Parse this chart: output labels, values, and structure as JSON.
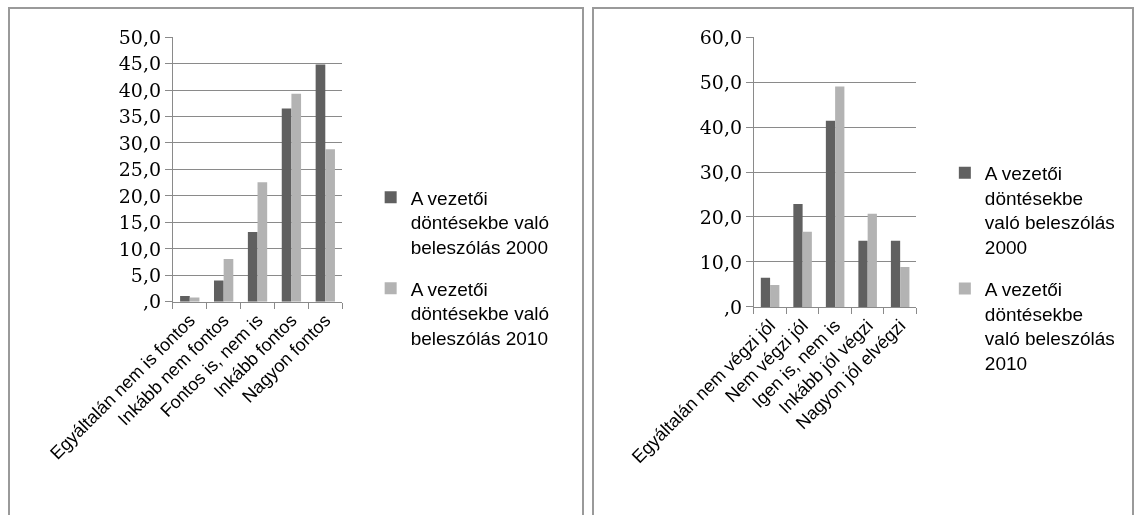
{
  "chart_data": [
    {
      "type": "bar",
      "categories": [
        "Egyáltalán nem is fontos",
        "Inkább nem fontos",
        "Fontos is, nem is",
        "Inkább fontos",
        "Nagyon fontos"
      ],
      "series": [
        {
          "name": "A vezetői döntésekbe való beleszólás 2000",
          "color": "#606060",
          "values": [
            1.1,
            4.0,
            13.2,
            36.5,
            44.8
          ]
        },
        {
          "name": "A vezetői döntésekbe való beleszólás 2010",
          "color": "#b3b3b3",
          "values": [
            0.8,
            8.1,
            22.6,
            39.3,
            28.8
          ]
        }
      ],
      "ylim": [
        0,
        50
      ],
      "yticks": [
        {
          "value": 0,
          "label": ",0"
        },
        {
          "value": 5,
          "label": "5,0"
        },
        {
          "value": 10,
          "label": "10,0"
        },
        {
          "value": 15,
          "label": "15,0"
        },
        {
          "value": 20,
          "label": "20,0"
        },
        {
          "value": 25,
          "label": "25,0"
        },
        {
          "value": 30,
          "label": "30,0"
        },
        {
          "value": 35,
          "label": "35,0"
        },
        {
          "value": 40,
          "label": "40,0"
        },
        {
          "value": 45,
          "label": "45,0"
        },
        {
          "value": 50,
          "label": "50,0"
        }
      ],
      "grid": "y",
      "legend": "right"
    },
    {
      "type": "bar",
      "categories": [
        "Egyáltalán nem végzi jól",
        "Nem végzi jól",
        "Igen is, nem is",
        "Inkább jól végzi",
        "Nagyon jól elvégzi"
      ],
      "series": [
        {
          "name": "A vezetői döntésekbe való beleszólás 2000",
          "color": "#606060",
          "values": [
            6.5,
            22.9,
            41.4,
            14.7,
            14.7
          ]
        },
        {
          "name": "A vezetői döntésekbe való beleszólás 2010",
          "color": "#b3b3b3",
          "values": [
            4.9,
            16.7,
            49.0,
            20.7,
            8.9
          ]
        }
      ],
      "ylim": [
        0,
        60
      ],
      "yticks": [
        {
          "value": 0,
          "label": ",0"
        },
        {
          "value": 10,
          "label": "10,0"
        },
        {
          "value": 20,
          "label": "20,0"
        },
        {
          "value": 30,
          "label": "30,0"
        },
        {
          "value": 40,
          "label": "40,0"
        },
        {
          "value": 50,
          "label": "50,0"
        },
        {
          "value": 60,
          "label": "60,0"
        }
      ],
      "grid": "y",
      "legend": "right"
    }
  ]
}
